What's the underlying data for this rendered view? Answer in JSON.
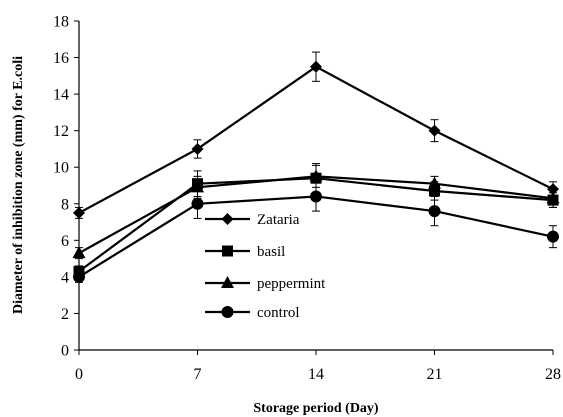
{
  "chart_data": {
    "type": "line",
    "x": [
      0,
      7,
      14,
      21,
      28
    ],
    "xlabel": "Storage period (Day)",
    "ylabel": "Diameter of inhibition zone (mm) for E.coli",
    "xlim": [
      0,
      28
    ],
    "ylim": [
      0,
      18
    ],
    "x_ticks": [
      "0",
      "7",
      "14",
      "21",
      "28"
    ],
    "y_ticks": [
      "0",
      "2",
      "4",
      "6",
      "8",
      "10",
      "12",
      "14",
      "16",
      "18"
    ],
    "grid": false,
    "legend_position": "center-left",
    "series": [
      {
        "name": "Zataria",
        "marker": "diamond",
        "values": [
          7.5,
          11.0,
          15.5,
          12.0,
          8.8
        ],
        "errors": [
          0.3,
          0.5,
          0.8,
          0.6,
          0.4
        ]
      },
      {
        "name": "basil",
        "marker": "square",
        "values": [
          4.3,
          9.1,
          9.4,
          8.7,
          8.2
        ],
        "errors": [
          0.3,
          0.7,
          0.8,
          0.5,
          0.4
        ]
      },
      {
        "name": "peppermint",
        "marker": "triangle",
        "values": [
          5.3,
          8.9,
          9.5,
          9.1,
          8.3
        ],
        "errors": [
          0.3,
          0.6,
          0.6,
          0.4,
          0.5
        ]
      },
      {
        "name": "control",
        "marker": "circle",
        "values": [
          4.0,
          8.0,
          8.4,
          7.6,
          6.2
        ],
        "errors": [
          0.3,
          0.8,
          0.8,
          0.8,
          0.6
        ]
      }
    ]
  }
}
